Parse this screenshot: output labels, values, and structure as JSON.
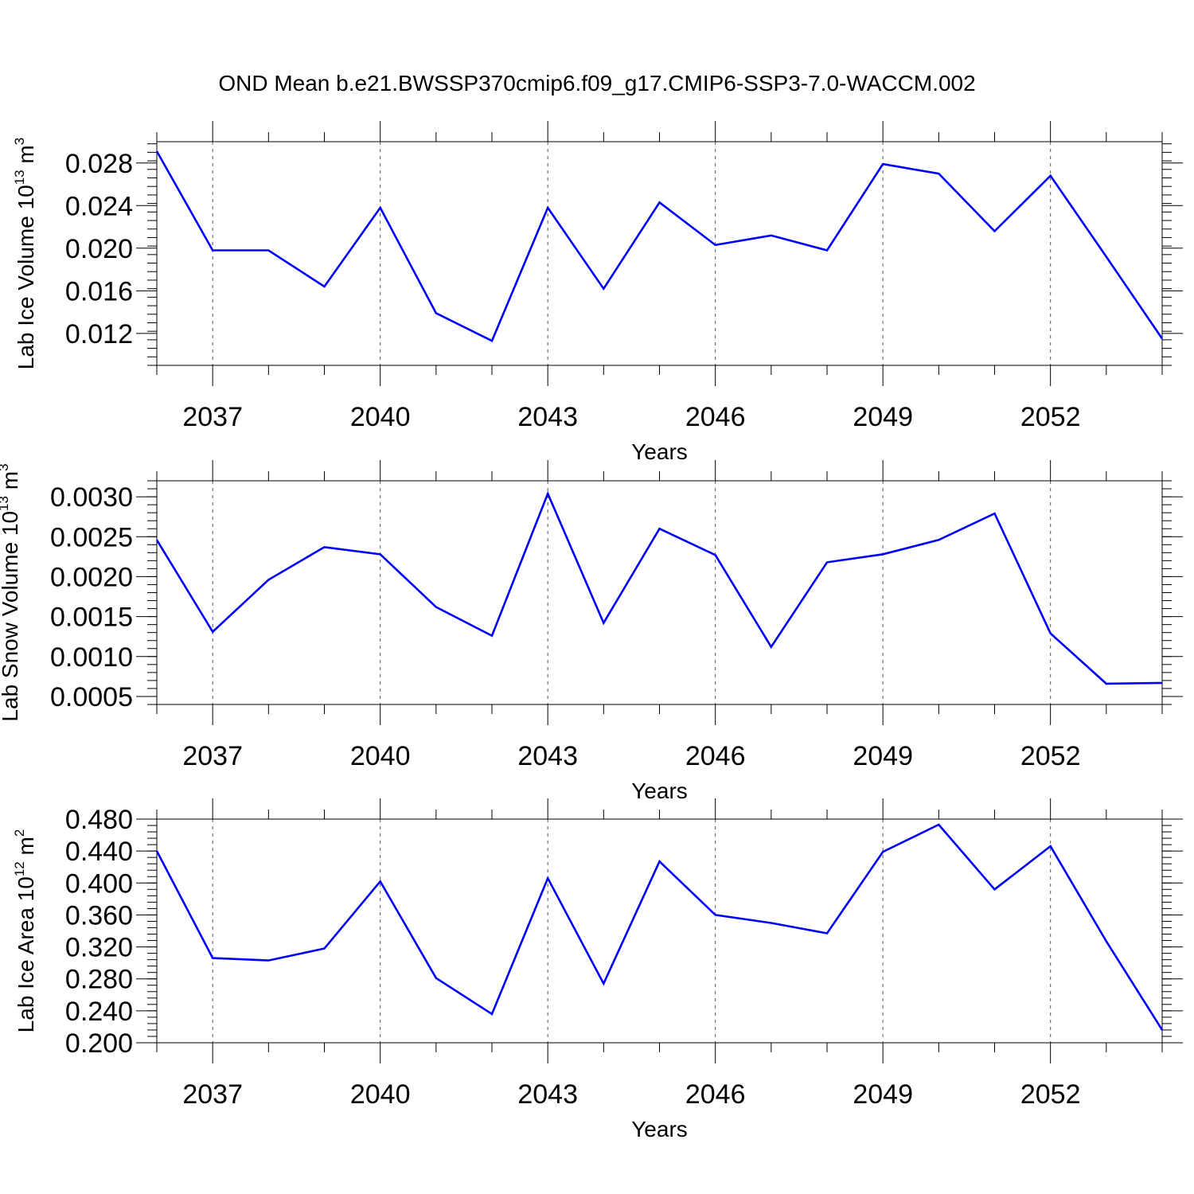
{
  "figure": {
    "title": "OND Mean b.e21.BWSSP370cmip6.f09_g17.CMIP6-SSP3-7.0-WACCM.002",
    "line_color": "#0000ff"
  },
  "chart_data": [
    {
      "type": "line",
      "xlabel": "Years",
      "ylabel": {
        "base": "Lab Ice Volume 10",
        "exp": "13",
        "unit": " m",
        "unit_exp": "3"
      },
      "x": [
        2036,
        2037,
        2038,
        2039,
        2040,
        2041,
        2042,
        2043,
        2044,
        2045,
        2046,
        2047,
        2048,
        2049,
        2050,
        2051,
        2052,
        2053,
        2054
      ],
      "series": [
        {
          "values": [
            0.0291,
            0.0198,
            0.0198,
            0.0164,
            0.0238,
            0.0139,
            0.0113,
            0.0238,
            0.0162,
            0.0243,
            0.0203,
            0.0212,
            0.0198,
            0.0279,
            0.027,
            0.0216,
            0.0268,
            0.0192,
            0.0115
          ]
        }
      ],
      "xlim": [
        2036,
        2054
      ],
      "ylim": [
        0.009,
        0.03
      ],
      "xticks": [
        2037,
        2040,
        2043,
        2046,
        2049,
        2052
      ],
      "xtick_labels": [
        "2037",
        "2040",
        "2043",
        "2046",
        "2049",
        "2052"
      ],
      "yticks": [
        0.012,
        0.016,
        0.02,
        0.024,
        0.028
      ],
      "ytick_labels": [
        "0.012",
        "0.016",
        "0.020",
        "0.024",
        "0.028"
      ],
      "y_minor_step": 0.0008,
      "grid": "vertical dashed at major x ticks"
    },
    {
      "type": "line",
      "xlabel": "Years",
      "ylabel": {
        "base": "Lab Snow Volume 10",
        "exp": "13",
        "unit": " m",
        "unit_exp": "3"
      },
      "x": [
        2036,
        2037,
        2038,
        2039,
        2040,
        2041,
        2042,
        2043,
        2044,
        2045,
        2046,
        2047,
        2048,
        2049,
        2050,
        2051,
        2052,
        2053,
        2054
      ],
      "series": [
        {
          "values": [
            0.00246,
            0.00131,
            0.00196,
            0.00237,
            0.00228,
            0.00162,
            0.00126,
            0.00304,
            0.00142,
            0.0026,
            0.00227,
            0.00112,
            0.00218,
            0.00228,
            0.00246,
            0.00279,
            0.00129,
            0.00066,
            0.00067
          ]
        }
      ],
      "xlim": [
        2036,
        2054
      ],
      "ylim": [
        0.0004,
        0.0032
      ],
      "xticks": [
        2037,
        2040,
        2043,
        2046,
        2049,
        2052
      ],
      "xtick_labels": [
        "2037",
        "2040",
        "2043",
        "2046",
        "2049",
        "2052"
      ],
      "yticks": [
        0.0005,
        0.001,
        0.0015,
        0.002,
        0.0025,
        0.003
      ],
      "ytick_labels": [
        "0.0005",
        "0.0010",
        "0.0015",
        "0.0020",
        "0.0025",
        "0.0030"
      ],
      "y_minor_step": 0.0001,
      "grid": "vertical dashed at major x ticks"
    },
    {
      "type": "line",
      "xlabel": "Years",
      "ylabel": {
        "base": "Lab Ice Area 10",
        "exp": "12",
        "unit": " m",
        "unit_exp": "2"
      },
      "x": [
        2036,
        2037,
        2038,
        2039,
        2040,
        2041,
        2042,
        2043,
        2044,
        2045,
        2046,
        2047,
        2048,
        2049,
        2050,
        2051,
        2052,
        2053,
        2054
      ],
      "series": [
        {
          "values": [
            0.44,
            0.306,
            0.303,
            0.318,
            0.402,
            0.281,
            0.236,
            0.406,
            0.274,
            0.427,
            0.36,
            0.35,
            0.337,
            0.439,
            0.473,
            0.392,
            0.446,
            0.327,
            0.216
          ]
        }
      ],
      "xlim": [
        2036,
        2054
      ],
      "ylim": [
        0.2,
        0.48
      ],
      "xticks": [
        2037,
        2040,
        2043,
        2046,
        2049,
        2052
      ],
      "xtick_labels": [
        "2037",
        "2040",
        "2043",
        "2046",
        "2049",
        "2052"
      ],
      "yticks": [
        0.2,
        0.24,
        0.28,
        0.32,
        0.36,
        0.4,
        0.44,
        0.48
      ],
      "ytick_labels": [
        "0.200",
        "0.240",
        "0.280",
        "0.320",
        "0.360",
        "0.400",
        "0.440",
        "0.480"
      ],
      "y_minor_step": 0.008,
      "grid": "vertical dashed at major x ticks"
    }
  ]
}
